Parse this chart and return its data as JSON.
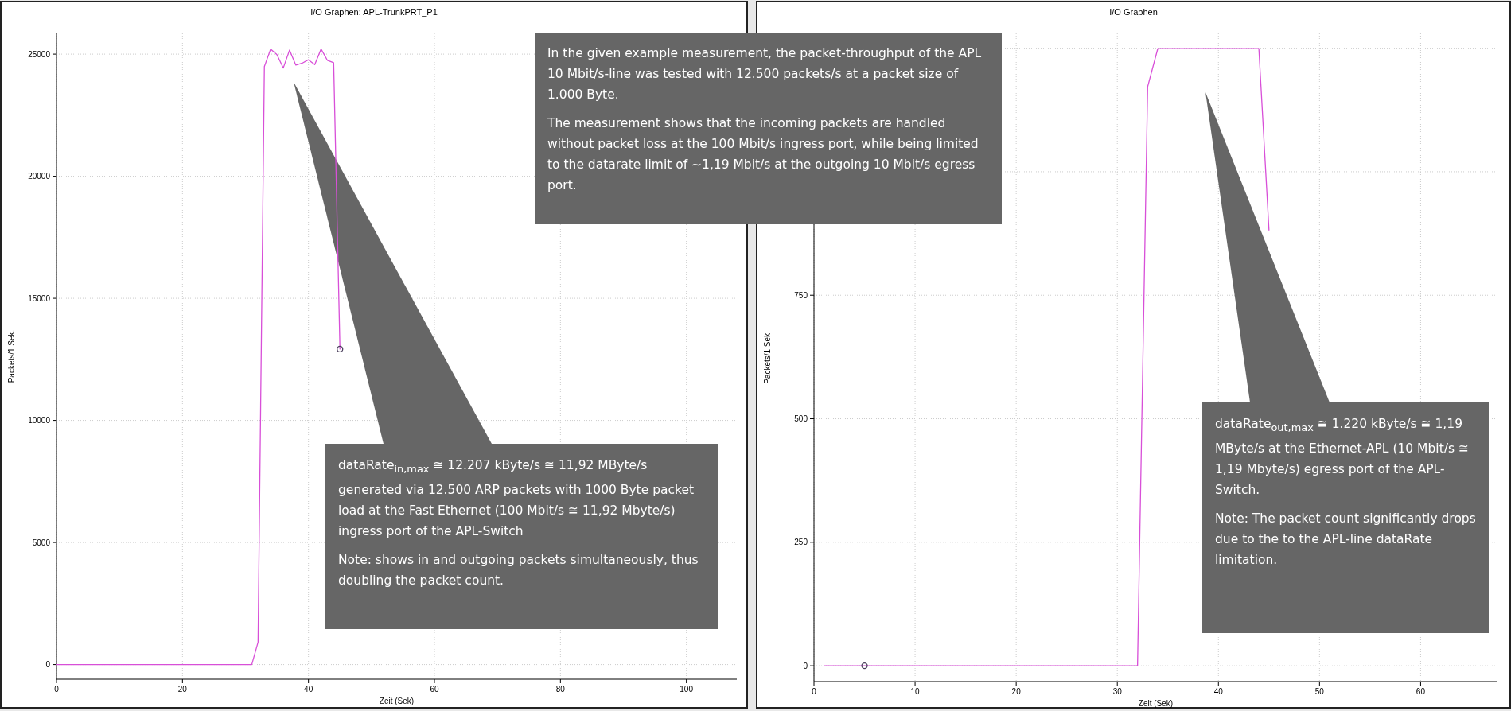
{
  "chart_data": [
    {
      "type": "line",
      "title": "I/O Graphen: APL-TrunkPRT_P1",
      "xlabel": "Zeit (Sek)",
      "ylabel": "Packets/1 Sek.",
      "xlim": [
        0,
        108
      ],
      "xticks": [
        0,
        20,
        40,
        60,
        80,
        100
      ],
      "ylim": [
        -600,
        25850
      ],
      "yticks": [
        0,
        5000,
        10000,
        15000,
        20000,
        25000
      ],
      "grid": true,
      "series": [
        {
          "color": "#d84fd8",
          "x": [
            0,
            31,
            32,
            33,
            34,
            35,
            36,
            37,
            38,
            39,
            40,
            41,
            42,
            43,
            44,
            45
          ],
          "values": [
            0,
            0,
            920,
            24490,
            25210,
            24980,
            24430,
            25170,
            24550,
            24630,
            24770,
            24570,
            25210,
            24750,
            24650,
            12920
          ]
        },
        {
          "type": "scatter",
          "color": "#4a3f5c",
          "marker": "circle",
          "x": [
            45
          ],
          "values": [
            12920
          ]
        }
      ],
      "annotations": [
        "In the given example measurement, the packet-throughput of the APL 10 Mbit/s-line was tested with 12.500 packets/s at a packet size of 1.000 Byte.",
        "The measurement shows that the incoming packets are handled without packet loss at the 100 Mbit/s ingress port, while being limited to the datarate limit of ~1,19 Mbit/s at the outgoing 10 Mbit/s egress port.",
        "dataRate$_{in,max}$  ≅ 12.207 kByte/s ≅ 11,92 MByte/s generated via 12.500 ARP packets with 1000 Byte packet load at the Fast Ethernet (100 Mbit/s ≅ 11,92 Mbyte/s) ingress port of the APL-Switch",
        "Note: shows in and outgoing packets simultaneously, thus doubling the packet count."
      ]
    },
    {
      "type": "line",
      "title": "I/O Graphen",
      "xlabel": "Zeit (Sek)",
      "ylabel": "Packets/1 Sek.",
      "xlim": [
        0,
        67.6
      ],
      "xticks": [
        0,
        10,
        20,
        30,
        40,
        50,
        60
      ],
      "ylim": [
        -32,
        1280
      ],
      "yticks": [
        0,
        250,
        500,
        750,
        {
          "value": 1000,
          "label": null
        },
        {
          "value": 1250,
          "label": null
        }
      ],
      "grid": true,
      "series": [
        {
          "color": "#d84fd8",
          "x": [
            1,
            32,
            33,
            34,
            44,
            45
          ],
          "values": [
            0,
            0,
            1172,
            1249,
            1249,
            882
          ]
        },
        {
          "type": "scatter",
          "color": "#4a3f5c",
          "marker": "circle",
          "x": [
            5
          ],
          "values": [
            0
          ]
        }
      ],
      "annotations": [
        "dataRate$_{out,max}$  ≅ 1.220 kByte/s ≅ 1,19 MByte/s at the Ethernet-APL (10 Mbit/s ≅ 1,19 Mbyte/s) egress port of the APL-Switch.",
        "Note: The packet count significantly drops due to the to the APL-line dataRate limitation."
      ]
    }
  ]
}
